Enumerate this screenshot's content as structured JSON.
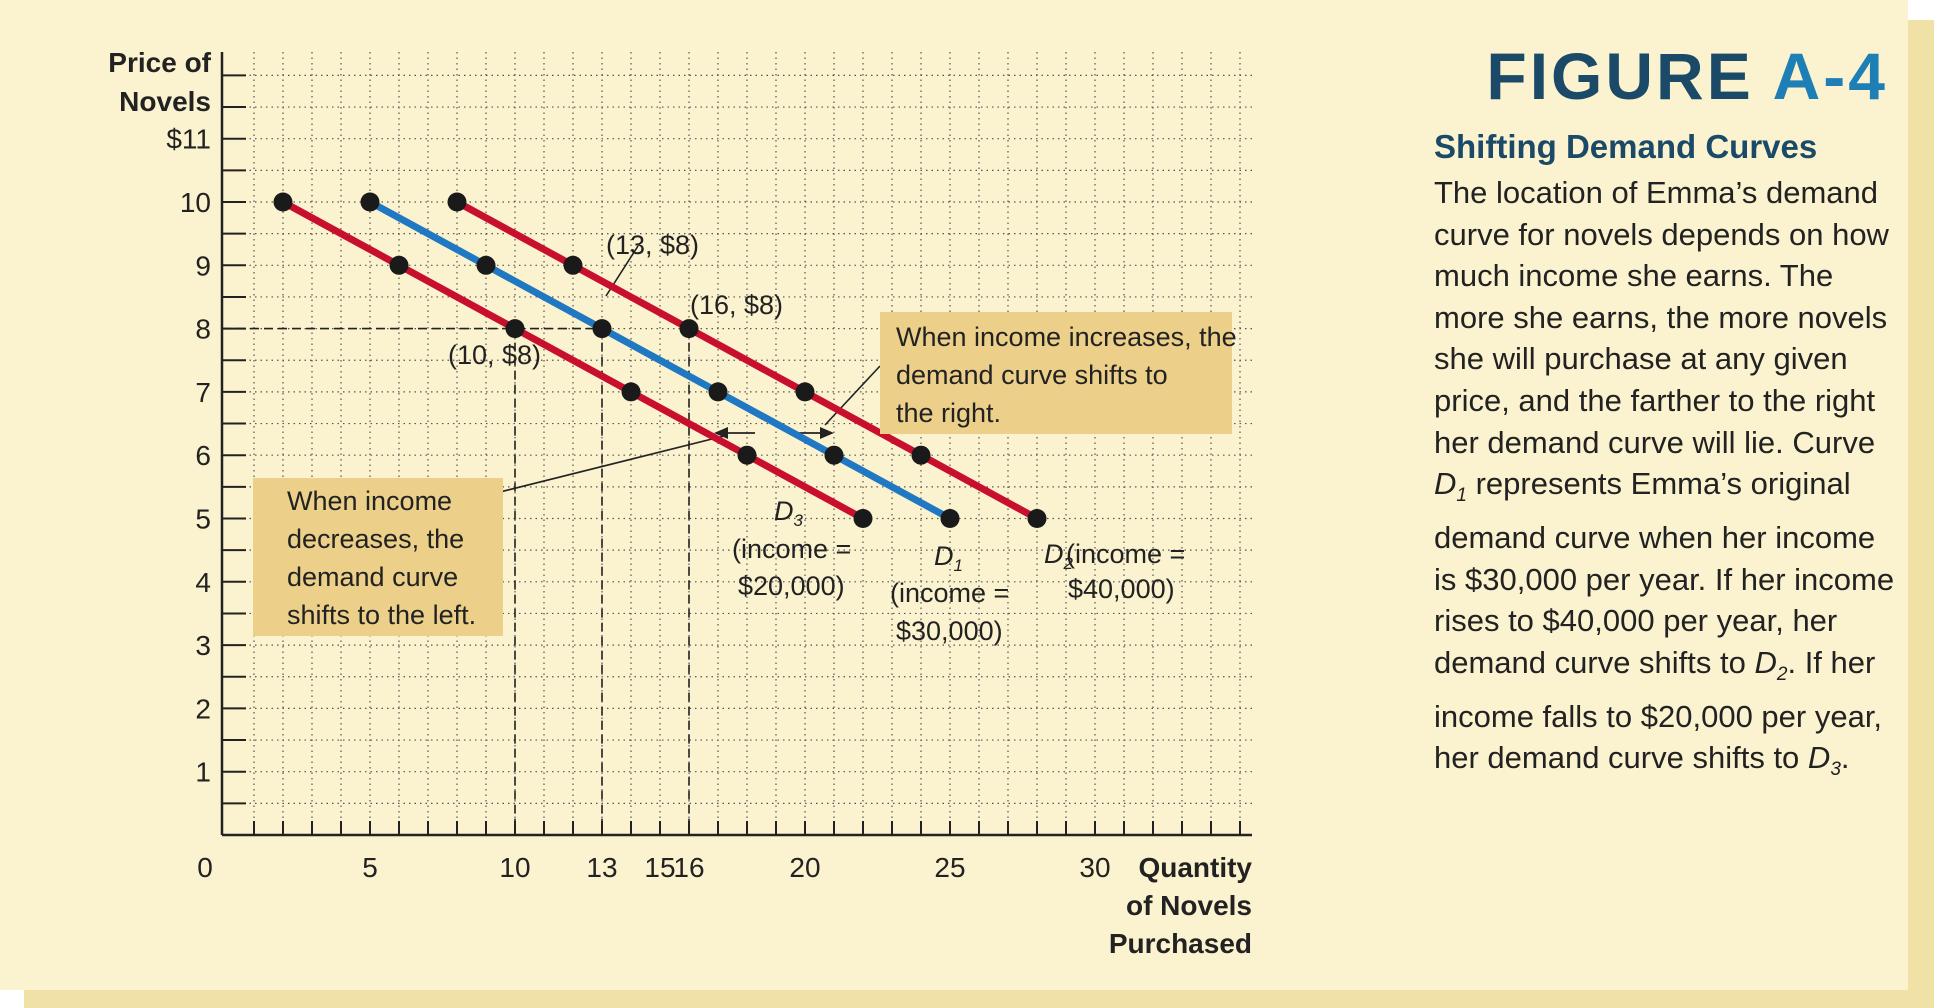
{
  "figure": {
    "label": "FIGURE",
    "number": "A-4",
    "heading": "Shifting Demand Curves",
    "caption": [
      {
        "t": "text",
        "v": "The location of Emma’s demand curve for novels depends on how much income she earns. The more she earns, the more novels she will purchase at any given price, and the farther to the right her demand curve will lie. Curve "
      },
      {
        "t": "ital",
        "v": "D",
        "sub": "1"
      },
      {
        "t": "text",
        "v": " represents Emma’s original demand curve when her income is $30,000 per year. If her income rises to $40,000 per year, her demand curve shifts to "
      },
      {
        "t": "ital",
        "v": "D",
        "sub": "2"
      },
      {
        "t": "text",
        "v": ". If her income falls to $20,000 per year, her demand curve shifts to "
      },
      {
        "t": "ital",
        "v": "D",
        "sub": "3"
      },
      {
        "t": "text",
        "v": "."
      }
    ]
  },
  "colors": {
    "panel": "#fbf2cf",
    "shadow": "#f0e2a6",
    "title_dark": "#1a4a67",
    "title_accent": "#1e7fb6",
    "red_curve": "#c8102e",
    "blue_curve": "#1f78c1",
    "callout": "#ecd08a",
    "grid": "#555555"
  },
  "chart_data": {
    "type": "line",
    "ylabel": [
      "Price of",
      "Novels"
    ],
    "xlabel": [
      "Quantity",
      "of Novels",
      "Purchased"
    ],
    "xlim": [
      0,
      35
    ],
    "ylim": [
      0,
      12
    ],
    "x_ticks": [
      {
        "v": 0,
        "l": "0"
      },
      {
        "v": 5,
        "l": "5"
      },
      {
        "v": 10,
        "l": "10"
      },
      {
        "v": 13,
        "l": "13"
      },
      {
        "v": 15,
        "l": "15"
      },
      {
        "v": 16,
        "l": "16"
      },
      {
        "v": 20,
        "l": "20"
      },
      {
        "v": 25,
        "l": "25"
      },
      {
        "v": 30,
        "l": "30"
      }
    ],
    "y_ticks": [
      {
        "v": 1,
        "l": "1"
      },
      {
        "v": 2,
        "l": "2"
      },
      {
        "v": 3,
        "l": "3"
      },
      {
        "v": 4,
        "l": "4"
      },
      {
        "v": 5,
        "l": "5"
      },
      {
        "v": 6,
        "l": "6"
      },
      {
        "v": 7,
        "l": "7"
      },
      {
        "v": 8,
        "l": "8"
      },
      {
        "v": 9,
        "l": "9"
      },
      {
        "v": 10,
        "l": "10"
      },
      {
        "v": 11,
        "l": "$11"
      }
    ],
    "grid": true,
    "series": [
      {
        "name": "D3",
        "color": "red",
        "points": [
          [
            2,
            10
          ],
          [
            6,
            9
          ],
          [
            10,
            8
          ],
          [
            14,
            7
          ],
          [
            18,
            6
          ],
          [
            22,
            5
          ]
        ]
      },
      {
        "name": "D1",
        "color": "blue",
        "points": [
          [
            5,
            10
          ],
          [
            9,
            9
          ],
          [
            13,
            8
          ],
          [
            17,
            7
          ],
          [
            21,
            6
          ],
          [
            25,
            5
          ]
        ]
      },
      {
        "name": "D2",
        "color": "red",
        "points": [
          [
            8,
            10
          ],
          [
            12,
            9
          ],
          [
            16,
            8
          ],
          [
            20,
            7
          ],
          [
            24,
            6
          ],
          [
            28,
            5
          ]
        ]
      }
    ],
    "point_labels": [
      "(10, $8)",
      "(13, $8)",
      "(16, $8)"
    ],
    "curve_labels": [
      {
        "name": "D",
        "sub": "3",
        "lines": [
          "(income =",
          "$20,000)"
        ]
      },
      {
        "name": "D",
        "sub": "1",
        "lines": [
          "(income =",
          "$30,000)"
        ]
      },
      {
        "name": "D",
        "sub": "2",
        "lines": [
          " (income =",
          "$40,000)"
        ]
      }
    ],
    "annotations": [
      [
        "When income increases, the",
        "demand curve shifts to",
        "the right."
      ],
      [
        "When income",
        "decreases, the",
        "demand curve",
        "shifts to the left."
      ]
    ]
  }
}
